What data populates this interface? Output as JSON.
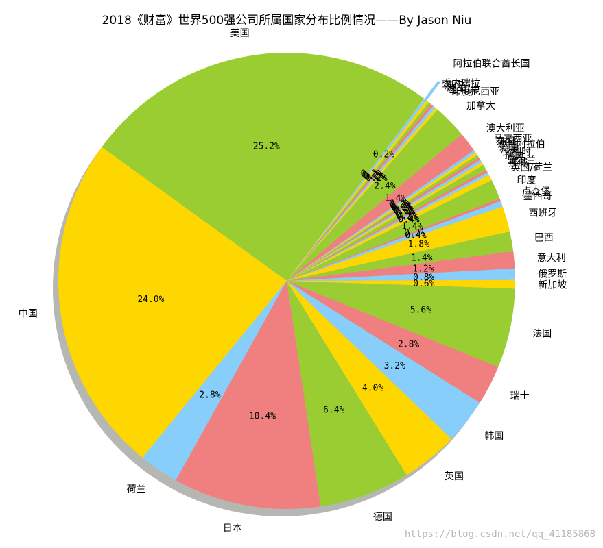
{
  "chart_data": {
    "type": "pie",
    "title": "2018《财富》世界500强公司所属国家分布比例情况——By Jason Niu",
    "series": [
      {
        "values": [
          {
            "label": "美国",
            "percent": 25.2,
            "count": 126
          },
          {
            "label": "中国",
            "percent": 24.0,
            "count": 120
          },
          {
            "label": "荷兰",
            "percent": 2.8,
            "count": 14
          },
          {
            "label": "日本",
            "percent": 10.4,
            "count": 52
          },
          {
            "label": "德国",
            "percent": 6.4,
            "count": 32
          },
          {
            "label": "英国",
            "percent": 4.0,
            "count": 20
          },
          {
            "label": "韩国",
            "percent": 3.2,
            "count": 16
          },
          {
            "label": "瑞士",
            "percent": 2.8,
            "count": 14
          },
          {
            "label": "法国",
            "percent": 5.6,
            "count": 28
          },
          {
            "label": "新加坡",
            "percent": 0.6,
            "count": 3
          },
          {
            "label": "俄罗斯",
            "percent": 0.8,
            "count": 4
          },
          {
            "label": "意大利",
            "percent": 1.2,
            "count": 6
          },
          {
            "label": "巴西",
            "percent": 1.4,
            "count": 7
          },
          {
            "label": "西班牙",
            "percent": 1.8,
            "count": 9
          },
          {
            "label": "墨西哥",
            "percent": 0.4,
            "count": 2
          },
          {
            "label": "卢森堡",
            "percent": 0.2,
            "count": 1
          },
          {
            "label": "印度",
            "percent": 1.4,
            "count": 7
          },
          {
            "label": "英国/荷兰",
            "percent": 0.4,
            "count": 2
          },
          {
            "label": "挪威",
            "percent": 0.2,
            "count": 1
          },
          {
            "label": "爱尔兰",
            "percent": 0.2,
            "count": 1
          },
          {
            "label": "瑞典",
            "percent": 0.4,
            "count": 2
          },
          {
            "label": "比利时",
            "percent": 0.2,
            "count": 1
          },
          {
            "label": "丹麦",
            "percent": 0.2,
            "count": 1
          },
          {
            "label": "芬兰",
            "percent": 0.2,
            "count": 1
          },
          {
            "label": "沙特阿拉伯",
            "percent": 0.2,
            "count": 1
          },
          {
            "label": "泰国",
            "percent": 0.2,
            "count": 1
          },
          {
            "label": "马来西亚",
            "percent": 0.2,
            "count": 1
          },
          {
            "label": "澳大利亚",
            "percent": 1.4,
            "count": 7
          },
          {
            "label": "加拿大",
            "percent": 2.4,
            "count": 12
          },
          {
            "label": "印度尼西亚",
            "percent": 0.2,
            "count": 1
          },
          {
            "label": "土耳其",
            "percent": 0.2,
            "count": 1
          },
          {
            "label": "波兰",
            "percent": 0.2,
            "count": 1
          },
          {
            "label": "澳门",
            "percent": 0.2,
            "count": 1
          },
          {
            "label": "委内瑞拉",
            "percent": 0.2,
            "count": 1
          },
          {
            "label": "阿拉伯联合酋长国",
            "percent": 0.2,
            "count": 1
          }
        ]
      }
    ],
    "start_angle_deg": 53,
    "counterclock": true,
    "explode_last": true,
    "shadow": true,
    "colors": [
      "#9acd32",
      "#ffd700",
      "#87cefa",
      "#f08080"
    ],
    "legend": "none"
  },
  "watermark": "https://blog.csdn.net/qq_41185868"
}
